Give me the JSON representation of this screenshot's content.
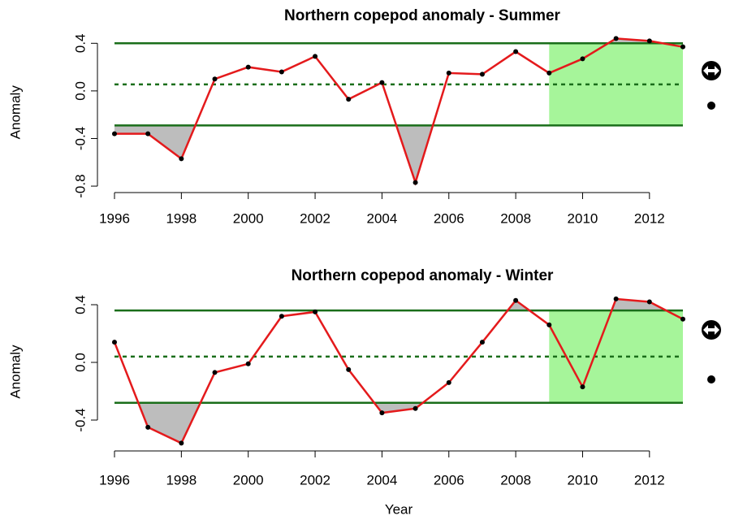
{
  "chart_data": [
    {
      "type": "line",
      "title": "Northern copepod anomaly - Summer",
      "y_label": "Anomaly",
      "x": [
        1996,
        1997,
        1998,
        1999,
        2000,
        2001,
        2002,
        2003,
        2004,
        2005,
        2006,
        2007,
        2008,
        2009,
        2010,
        2011,
        2012,
        2013
      ],
      "series": [
        {
          "color": "#e41a1c",
          "values": [
            -0.36,
            -0.36,
            -0.57,
            0.1,
            0.2,
            0.16,
            0.29,
            -0.07,
            0.07,
            -0.77,
            0.15,
            0.14,
            0.33,
            0.15,
            0.27,
            0.44,
            0.42,
            0.37
          ]
        }
      ],
      "xlim": [
        1996,
        2013
      ],
      "xticks": [
        1996,
        1998,
        2000,
        2002,
        2004,
        2006,
        2008,
        2010,
        2012
      ],
      "ylim": [
        -0.82,
        0.46
      ],
      "yticks": [
        -0.8,
        -0.4,
        {
          "value": 0,
          "label": "0.0"
        },
        0.4
      ],
      "upper_line": 0.4,
      "mean_line": 0.055,
      "lower_line": -0.29,
      "line_color": "#1a6e1a",
      "highlight_x": [
        2009,
        2013
      ],
      "highlight_color": "#a6f59a",
      "shade_color": "#bdbdbd"
    },
    {
      "type": "line",
      "title": "Northern copepod anomaly - Winter",
      "y_label": "Anomaly",
      "x_label": "Year",
      "x": [
        1996,
        1997,
        1998,
        1999,
        2000,
        2001,
        2002,
        2003,
        2004,
        2005,
        2006,
        2007,
        2008,
        2009,
        2010,
        2011,
        2012,
        2013
      ],
      "series": [
        {
          "color": "#e41a1c",
          "values": [
            0.14,
            -0.45,
            -0.56,
            -0.07,
            -0.01,
            0.32,
            0.35,
            -0.05,
            -0.35,
            -0.32,
            -0.14,
            0.14,
            0.43,
            0.26,
            -0.17,
            0.44,
            0.42,
            0.3
          ]
        }
      ],
      "xlim": [
        1996,
        2013
      ],
      "xticks": [
        1996,
        1998,
        2000,
        2002,
        2004,
        2006,
        2008,
        2010,
        2012
      ],
      "ylim": [
        -0.6,
        0.47
      ],
      "yticks": [
        -0.4,
        {
          "value": 0,
          "label": "0.0"
        },
        0.4
      ],
      "upper_line": 0.36,
      "mean_line": 0.04,
      "lower_line": -0.28,
      "line_color": "#1a6e1a",
      "highlight_x": [
        2009,
        2013
      ],
      "highlight_color": "#a6f59a",
      "shade_color": "#bdbdbd"
    }
  ]
}
